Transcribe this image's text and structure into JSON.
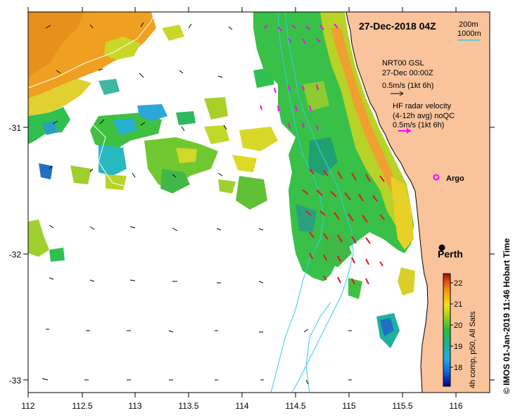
{
  "title": "27-Dec-2018 04Z",
  "bathymetry_legend": {
    "line1": "200m",
    "line2": "1000m"
  },
  "gsl_legend": {
    "line1": "NRT00 GSL",
    "line2": "27-Dec 00:00Z",
    "line3": "0.5m/s (1kt 6h)"
  },
  "hf_legend": {
    "line1": "HF radar velocity",
    "line2": "(4-12h avg) noQC",
    "line3": "0.5m/s (1kt 6h)"
  },
  "places": {
    "argo": "Argo",
    "perth": "Perth"
  },
  "x_ticks": [
    "112",
    "112.5",
    "113",
    "113.5",
    "114",
    "114.5",
    "115",
    "115.5",
    "116"
  ],
  "y_ticks": [
    "-31",
    "-32",
    "-33"
  ],
  "colorbar": {
    "ticks": [
      "22",
      "21",
      "20",
      "19",
      "18"
    ],
    "label": "4h comp, p50, All Sats"
  },
  "credit": "© IMOS 01-Jan-2019 11:46 Hobart Time",
  "colors": {
    "land": "#f9c39b",
    "hf_arrow": "#ff00ff",
    "radar_arrow": "#e8141e",
    "bathy": "#33ccee"
  }
}
